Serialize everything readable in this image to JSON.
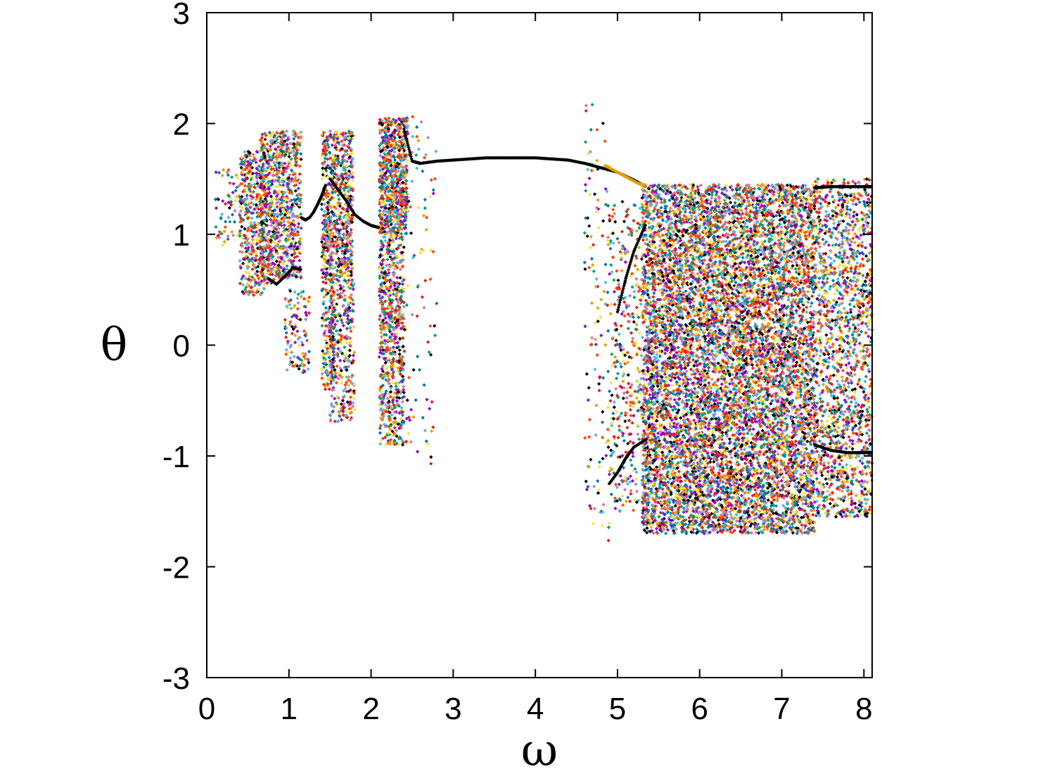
{
  "chart_data": {
    "type": "scatter",
    "title": "",
    "xlabel": "ω",
    "ylabel": "θ",
    "xlim": [
      0,
      8.1
    ],
    "ylim": [
      -3,
      3
    ],
    "xticks": [
      "0",
      "1",
      "2",
      "3",
      "4",
      "5",
      "6",
      "7",
      "8"
    ],
    "yticks": [
      "-3",
      "-2",
      "-1",
      "0",
      "1",
      "2",
      "3"
    ],
    "grid": false,
    "legend": "none",
    "marker": "small diamond, many overlapping colored series",
    "palette": [
      "#000000",
      "#9400d3",
      "#009e73",
      "#56b4e9",
      "#e69f00",
      "#f0e442",
      "#0072b2",
      "#e51e10",
      "#cc79a7",
      "#ff4500"
    ],
    "bands": [
      {
        "x": [
          0.1,
          0.4
        ],
        "y": [
          0.9,
          1.6
        ],
        "density": 60
      },
      {
        "x": [
          0.4,
          0.7
        ],
        "y": [
          0.45,
          1.75
        ],
        "density": 420
      },
      {
        "x": [
          0.65,
          0.85
        ],
        "y": [
          0.55,
          1.92
        ],
        "density": 380
      },
      {
        "x": [
          0.85,
          1.15
        ],
        "y": [
          0.6,
          1.93
        ],
        "density": 520
      },
      {
        "x": [
          0.95,
          1.25
        ],
        "y": [
          -0.25,
          0.5
        ],
        "density": 110
      },
      {
        "x": [
          1.4,
          1.55
        ],
        "y": [
          -0.4,
          1.0
        ],
        "density": 200
      },
      {
        "x": [
          1.4,
          1.78
        ],
        "y": [
          0.6,
          1.93
        ],
        "density": 700
      },
      {
        "x": [
          1.5,
          1.8
        ],
        "y": [
          -0.7,
          0.6
        ],
        "density": 320
      },
      {
        "x": [
          2.1,
          2.45
        ],
        "y": [
          1.0,
          2.05
        ],
        "density": 700
      },
      {
        "x": [
          2.1,
          2.4
        ],
        "y": [
          -0.9,
          1.0
        ],
        "density": 650
      },
      {
        "x": [
          2.4,
          2.8
        ],
        "y": [
          -1.1,
          2.1
        ],
        "density": 90
      },
      {
        "x": [
          4.6,
          4.9
        ],
        "y": [
          -1.8,
          2.2
        ],
        "density": 130
      },
      {
        "x": [
          5.3,
          7.4
        ],
        "y": [
          -1.7,
          1.45
        ],
        "density": 9000
      },
      {
        "x": [
          4.9,
          5.3
        ],
        "y": [
          -1.5,
          1.3
        ],
        "density": 350
      },
      {
        "x": [
          7.4,
          8.1
        ],
        "y": [
          -1.55,
          1.5
        ],
        "density": 1600
      }
    ],
    "curves": [
      {
        "name": "",
        "x": [
          0.75,
          0.85,
          0.95,
          1.05,
          1.15
        ],
        "y": [
          0.6,
          0.55,
          0.62,
          0.7,
          0.68
        ]
      },
      {
        "name": "",
        "x": [
          1.15,
          1.2,
          1.25,
          1.3,
          1.35,
          1.4,
          1.45
        ],
        "y": [
          1.15,
          1.13,
          1.15,
          1.2,
          1.27,
          1.35,
          1.45
        ]
      },
      {
        "name": "",
        "x": [
          1.5,
          1.6,
          1.7,
          1.8,
          1.9,
          2.0,
          2.1
        ],
        "y": [
          1.5,
          1.4,
          1.3,
          1.18,
          1.12,
          1.08,
          1.06
        ]
      },
      {
        "name": "",
        "x": [
          2.4,
          2.5,
          2.6,
          2.8,
          3.0,
          3.2,
          3.4,
          3.6,
          3.8,
          4.0,
          4.2,
          4.4,
          4.6,
          4.8,
          5.0,
          5.2,
          5.35
        ],
        "y": [
          1.95,
          1.66,
          1.64,
          1.66,
          1.67,
          1.68,
          1.69,
          1.69,
          1.69,
          1.69,
          1.68,
          1.67,
          1.64,
          1.6,
          1.56,
          1.49,
          1.43
        ]
      },
      {
        "name": "",
        "x": [
          4.9,
          5.0,
          5.1,
          5.2,
          5.35
        ],
        "y": [
          -1.25,
          -1.15,
          -1.02,
          -0.92,
          -0.85
        ]
      },
      {
        "name": "",
        "x": [
          5.0,
          5.1,
          5.2,
          5.35
        ],
        "y": [
          0.3,
          0.6,
          0.85,
          1.1
        ]
      },
      {
        "name": "",
        "x": [
          7.4,
          7.6,
          7.8,
          8.0,
          8.1
        ],
        "y": [
          -0.9,
          -0.95,
          -0.97,
          -0.97,
          -0.97
        ]
      },
      {
        "name": "",
        "x": [
          7.4,
          7.6,
          7.8,
          8.0,
          8.1
        ],
        "y": [
          1.42,
          1.43,
          1.43,
          1.43,
          1.43
        ]
      }
    ],
    "accent_curve": {
      "x": [
        4.85,
        4.95,
        5.05,
        5.15,
        5.25,
        5.35
      ],
      "y": [
        1.62,
        1.58,
        1.54,
        1.5,
        1.46,
        1.44
      ],
      "color": "#e69f00"
    }
  }
}
